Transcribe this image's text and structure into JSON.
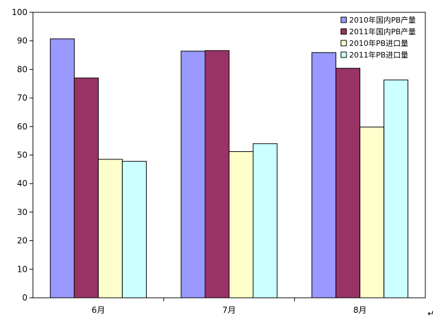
{
  "chart_data": {
    "type": "bar",
    "categories": [
      "6月",
      "7月",
      "8月"
    ],
    "series": [
      {
        "name": "2010年国内PB产量",
        "values": [
          90.7,
          86.4,
          85.9
        ],
        "color": "#9999FF"
      },
      {
        "name": "2011年国内PB产量",
        "values": [
          77.0,
          86.6,
          80.4
        ],
        "color": "#993366"
      },
      {
        "name": "2010年PB进口量",
        "values": [
          48.5,
          51.2,
          59.8
        ],
        "color": "#FFFFCC"
      },
      {
        "name": "2011年PB进口量",
        "values": [
          47.8,
          54.0,
          76.3
        ],
        "color": "#CCFFFF"
      }
    ],
    "ylim": [
      0,
      100
    ],
    "yticks": [
      "0",
      "10",
      "20",
      "30",
      "40",
      "50",
      "60",
      "70",
      "80",
      "90",
      "100"
    ],
    "grid": false,
    "legend": "top-right"
  },
  "page": {
    "end_mark": "↵"
  }
}
